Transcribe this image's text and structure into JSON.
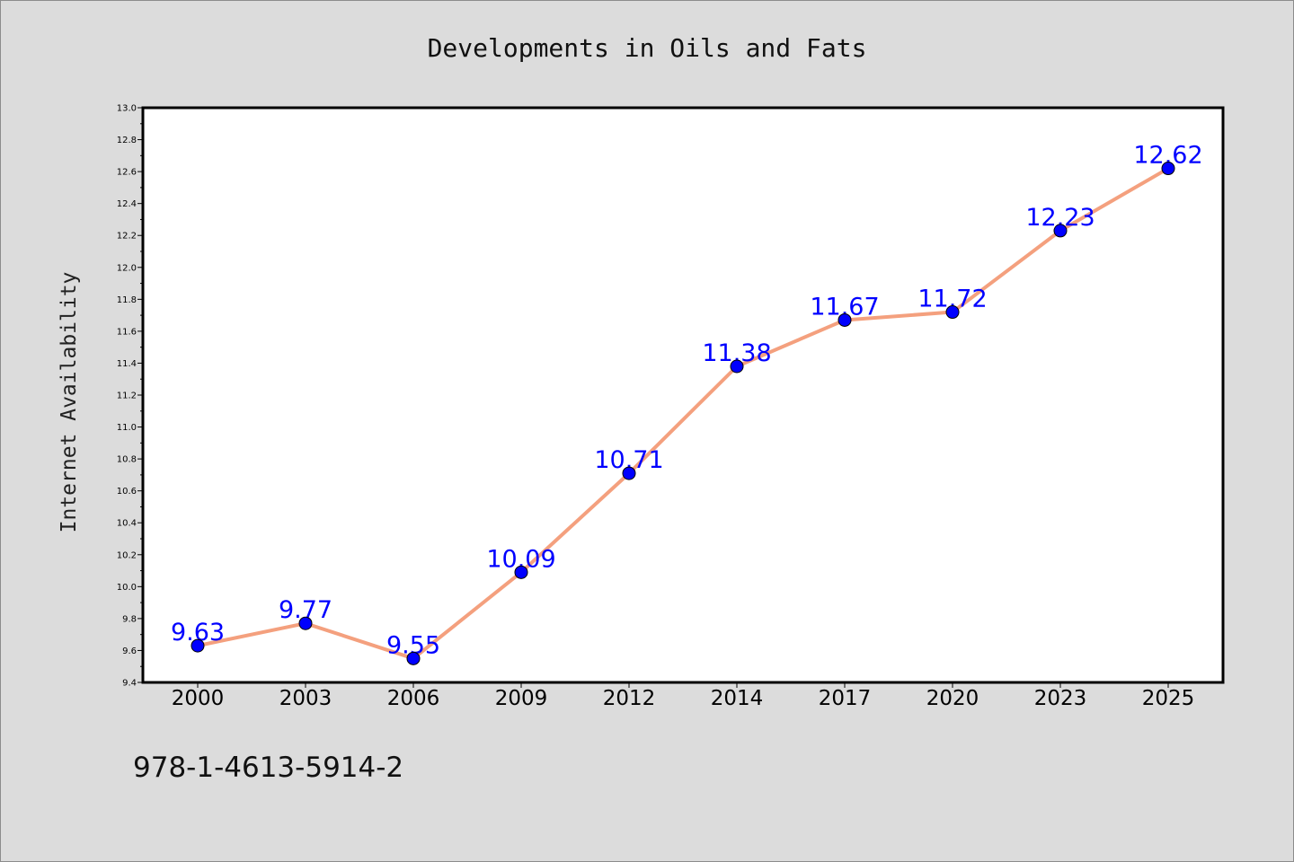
{
  "chart_data": {
    "type": "line",
    "title": "Developments in Oils and Fats",
    "xlabel": "",
    "ylabel": "Internet Availability",
    "categories": [
      "2000",
      "2003",
      "2006",
      "2009",
      "2012",
      "2014",
      "2017",
      "2020",
      "2023",
      "2025"
    ],
    "series": [
      {
        "values": [
          9.63,
          9.77,
          9.55,
          10.09,
          10.71,
          11.38,
          11.67,
          11.72,
          12.23,
          12.62
        ],
        "line_color": "#f4a07e",
        "marker_color": "#0000ff",
        "label_color": "#0000ff"
      }
    ],
    "ylim": [
      9.4,
      13.0
    ],
    "yticks": [
      "9.4",
      "9.6",
      "9.8",
      "10.0",
      "10.2",
      "10.4",
      "10.6",
      "10.8",
      "11.0",
      "11.2",
      "11.4",
      "11.6",
      "11.8",
      "12.0",
      "12.2",
      "12.4",
      "12.6",
      "12.8",
      "13.0"
    ],
    "grid": false,
    "legend": "none",
    "data_labels": true
  },
  "footnote": "978-1-4613-5914-2",
  "colors": {
    "background": "#dcdcdc",
    "plot_background": "#ffffff",
    "axis": "#000000"
  }
}
